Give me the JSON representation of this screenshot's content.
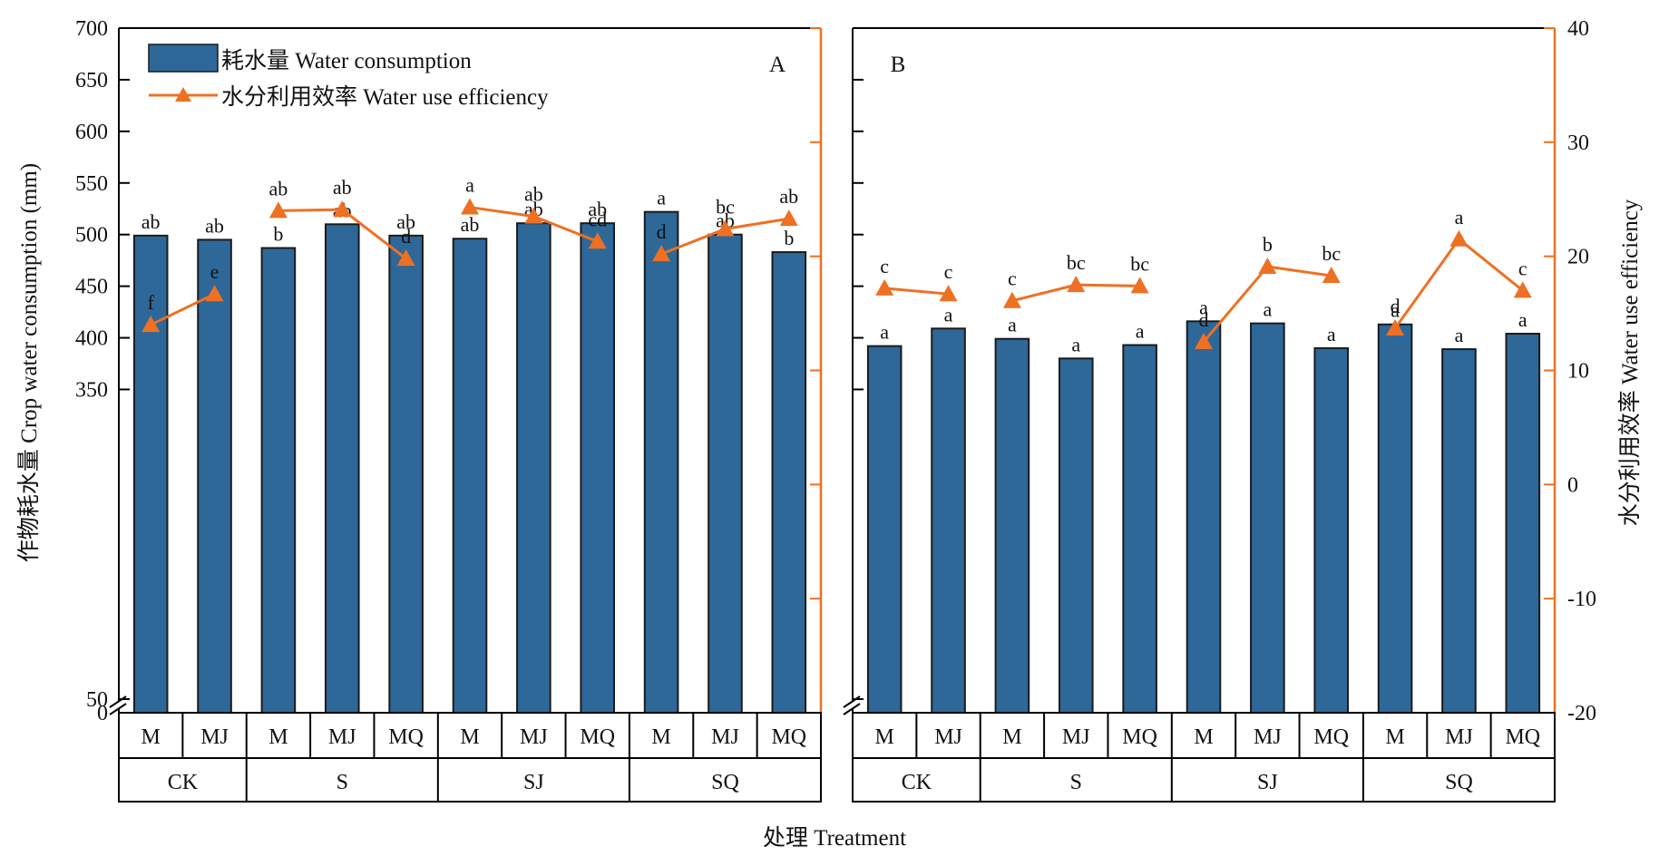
{
  "figure": {
    "xlabel": "处理 Treatment",
    "ylabel_left": "作物耗水量 Crop water consumption (mm)",
    "ylabel_right": "水分利用效率 Water use efficiency"
  },
  "legend": {
    "bar_label": "耗水量 Water consumption",
    "line_label": "水分利用效率 Water use efficiency",
    "position": "top-left"
  },
  "colors": {
    "bar": "#2e6899",
    "bar_edge": "#1b1b1b",
    "line": "#ee7022",
    "axis": "#000000"
  },
  "chart_data": [
    {
      "type": "bar",
      "panel_label": "A",
      "categories": [
        "M",
        "MJ",
        "M",
        "MJ",
        "MQ",
        "M",
        "MJ",
        "MQ",
        "M",
        "MJ",
        "MQ"
      ],
      "groups": [
        {
          "label": "CK",
          "size": 2
        },
        {
          "label": "S",
          "size": 3
        },
        {
          "label": "SJ",
          "size": 3
        },
        {
          "label": "SQ",
          "size": 3
        }
      ],
      "series": [
        {
          "name": "耗水量 Water consumption",
          "axis": "left",
          "values": [
            499,
            495,
            487,
            510,
            499,
            496,
            511,
            511,
            522,
            500,
            483
          ],
          "labels": [
            "ab",
            "ab",
            "b",
            "ab",
            "ab",
            "ab",
            "ab",
            "ab",
            "a",
            "ab",
            "b"
          ]
        },
        {
          "name": "水分利用效率 Water use efficiency",
          "axis": "right",
          "type": "line",
          "values": [
            14.0,
            16.7,
            24.0,
            24.1,
            19.8,
            24.3,
            23.5,
            21.3,
            20.2,
            22.4,
            23.3
          ],
          "labels": [
            "f",
            "e",
            "ab",
            "ab",
            "d",
            "a",
            "ab",
            "cd",
            "d",
            "bc",
            "ab"
          ],
          "segments": [
            [
              0,
              1
            ],
            [
              2,
              4
            ],
            [
              5,
              7
            ],
            [
              8,
              10
            ]
          ]
        }
      ],
      "y_left": {
        "range": [
          0,
          700
        ],
        "axis_break": [
          0,
          50
        ],
        "ticks": [
          0,
          50,
          350,
          400,
          450,
          500,
          550,
          600,
          650,
          700
        ],
        "show_tick_labels": true
      },
      "y_right": {
        "range": [
          -20,
          40
        ],
        "ticks": [
          -20,
          -10,
          0,
          10,
          20,
          30,
          40
        ],
        "show_tick_labels": false
      },
      "grid": false
    },
    {
      "type": "bar",
      "panel_label": "B",
      "categories": [
        "M",
        "MJ",
        "M",
        "MJ",
        "MQ",
        "M",
        "MJ",
        "MQ",
        "M",
        "MJ",
        "MQ"
      ],
      "groups": [
        {
          "label": "CK",
          "size": 2
        },
        {
          "label": "S",
          "size": 3
        },
        {
          "label": "SJ",
          "size": 3
        },
        {
          "label": "SQ",
          "size": 3
        }
      ],
      "series": [
        {
          "name": "耗水量 Water consumption",
          "axis": "left",
          "values": [
            392,
            409,
            399,
            380,
            393,
            416,
            414,
            390,
            413,
            389,
            404
          ],
          "labels": [
            "a",
            "a",
            "a",
            "a",
            "a",
            "a",
            "a",
            "a",
            "a",
            "a",
            "a"
          ]
        },
        {
          "name": "水分利用效率 Water use efficiency",
          "axis": "right",
          "type": "line",
          "values": [
            17.2,
            16.7,
            16.1,
            17.5,
            17.4,
            12.5,
            19.1,
            18.3,
            13.7,
            21.5,
            17.0
          ],
          "labels": [
            "c",
            "c",
            "c",
            "bc",
            "bc",
            "d",
            "b",
            "bc",
            "d",
            "a",
            "c"
          ],
          "segments": [
            [
              0,
              1
            ],
            [
              2,
              4
            ],
            [
              5,
              7
            ],
            [
              8,
              10
            ]
          ]
        }
      ],
      "y_left": {
        "range": [
          0,
          700
        ],
        "axis_break": [
          0,
          50
        ],
        "ticks": [
          0,
          50,
          350,
          400,
          450,
          500,
          550,
          600,
          650,
          700
        ],
        "show_tick_labels": false
      },
      "y_right": {
        "range": [
          -20,
          40
        ],
        "ticks": [
          -20,
          -10,
          0,
          10,
          20,
          30,
          40
        ],
        "show_tick_labels": true
      },
      "grid": false
    }
  ]
}
